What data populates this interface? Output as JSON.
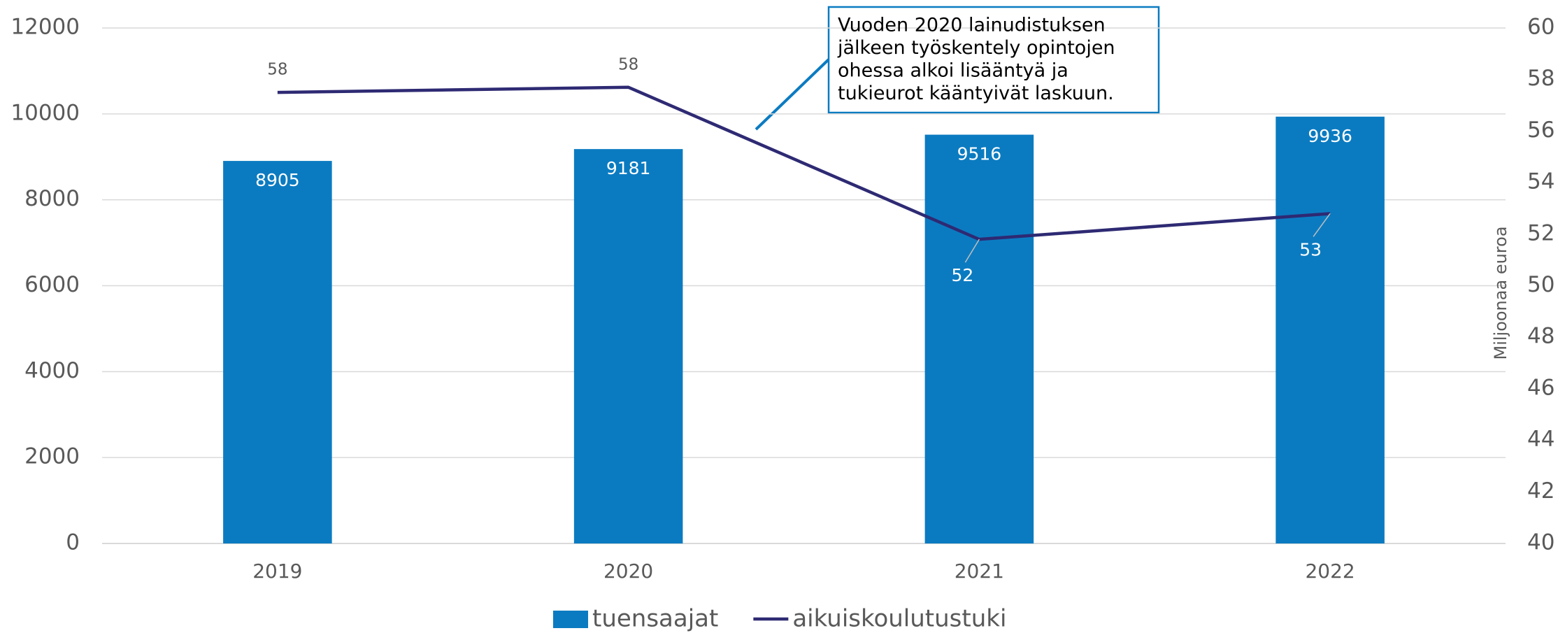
{
  "chart_data": {
    "type": "bar",
    "categories": [
      "2019",
      "2020",
      "2021",
      "2022"
    ],
    "series": [
      {
        "name": "tuensaajat",
        "type": "bar",
        "color": "#0b7bc1",
        "values": [
          8905,
          9181,
          9516,
          9936
        ]
      },
      {
        "name": "aikuiskoulutustuki",
        "type": "line",
        "axis": "y2",
        "color": "#2e2a73",
        "values": [
          57.5,
          57.7,
          51.8,
          52.8
        ],
        "value_labels": [
          "58",
          "58",
          "52",
          "53"
        ]
      }
    ],
    "ylim": [
      0,
      12000
    ],
    "yticks": [
      0,
      2000,
      4000,
      6000,
      8000,
      10000,
      12000
    ],
    "y2lim": [
      40,
      60
    ],
    "y2ticks": [
      40,
      42,
      44,
      46,
      48,
      50,
      52,
      54,
      56,
      58,
      60
    ],
    "y2label": "Miljoonaa euroa",
    "annotation": [
      "Vuoden 2020 lainudistuksen",
      "jälkeen työskentely opintojen",
      "ohessa alkoi lisääntyä ja",
      "tukieurot kääntyivät laskuun."
    ],
    "grid": true,
    "legend": "bottom"
  }
}
